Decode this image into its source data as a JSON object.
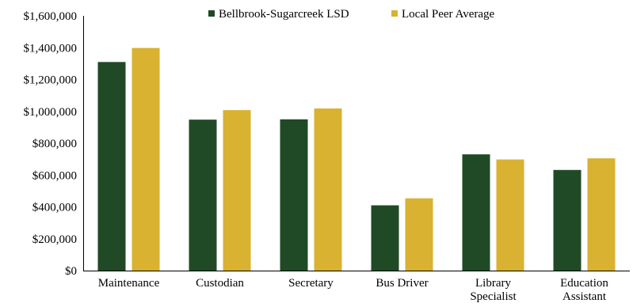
{
  "chart_data": {
    "type": "bar",
    "title": "",
    "xlabel": "",
    "ylabel": "",
    "categories": [
      [
        "Maintenance"
      ],
      [
        "Custodian"
      ],
      [
        "Secretary"
      ],
      [
        "Bus Driver"
      ],
      [
        "Library",
        "Specialist"
      ],
      [
        "Education",
        "Assistant"
      ]
    ],
    "series": [
      {
        "name": "Bellbrook-Sugarcreek LSD",
        "color": "#1f4a25",
        "values": [
          1310000,
          948000,
          950000,
          410000,
          730000,
          632000
        ]
      },
      {
        "name": "Local Peer Average",
        "color": "#d8b230",
        "values": [
          1398000,
          1008000,
          1018000,
          454000,
          698000,
          705000
        ]
      }
    ],
    "ylim": [
      0,
      1600000
    ],
    "yticks": [
      0,
      200000,
      400000,
      600000,
      800000,
      1000000,
      1200000,
      1400000,
      1600000
    ],
    "ytick_labels": [
      "$0",
      "$200,000",
      "$400,000",
      "$600,000",
      "$800,000",
      "$1,000,000",
      "$1,200,000",
      "$1,400,000",
      "$1,600,000"
    ],
    "grid": false,
    "legend_position": "top-center"
  }
}
